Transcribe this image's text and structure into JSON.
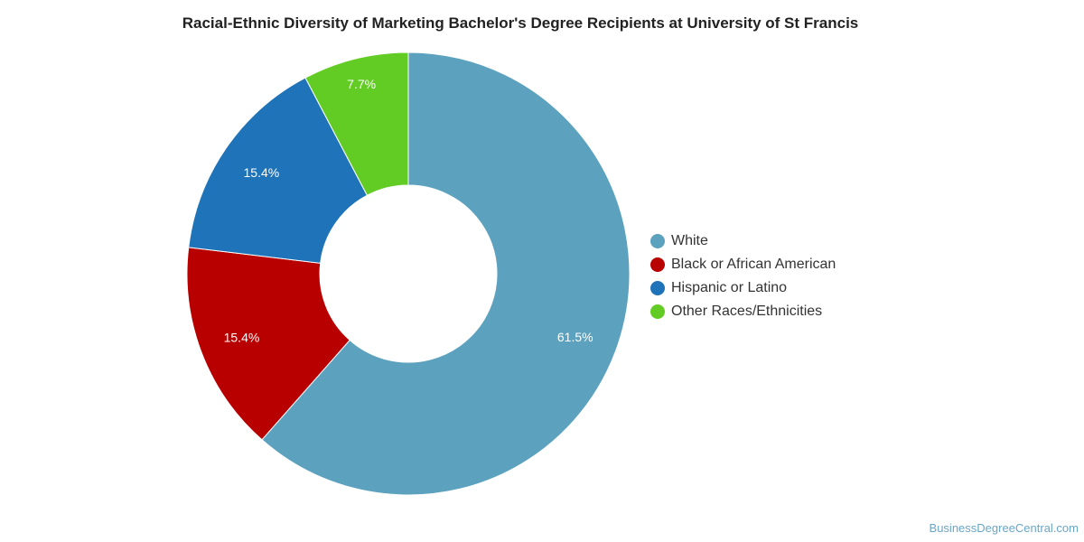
{
  "chart_data": {
    "type": "pie",
    "title": "Racial-Ethnic Diversity of Marketing Bachelor's Degree Recipients at University of St Francis",
    "donut": true,
    "legend_position": "right",
    "slices": [
      {
        "name": "White",
        "value": 61.5,
        "label": "61.5%",
        "color": "#5ca2bf"
      },
      {
        "name": "Black or African American",
        "value": 15.4,
        "label": "15.4%",
        "color": "#b90000"
      },
      {
        "name": "Hispanic or Latino",
        "value": 15.4,
        "label": "15.4%",
        "color": "#1f73b8"
      },
      {
        "name": "Other Races/Ethnicities",
        "value": 7.7,
        "label": "7.7%",
        "color": "#62cc24"
      }
    ]
  },
  "watermark": "BusinessDegreeCentral.com"
}
